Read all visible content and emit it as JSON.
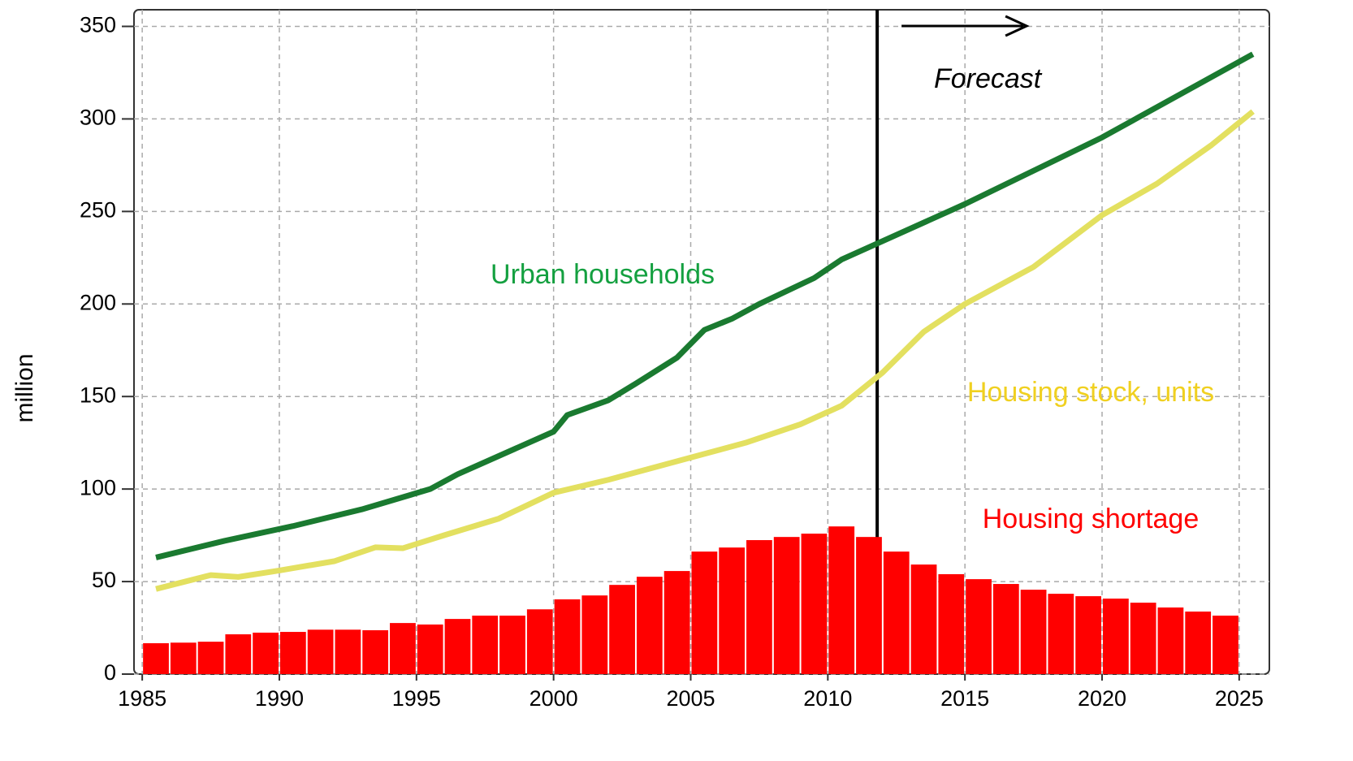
{
  "chart_data": {
    "type": "bar",
    "y_label": "million",
    "annotation": "Forecast",
    "forecast_x": 2011.8,
    "xlim": [
      1984.7,
      2026.1
    ],
    "ylim": [
      0,
      359
    ],
    "xticks": [
      1985,
      1990,
      1995,
      2000,
      2005,
      2010,
      2015,
      2020,
      2025
    ],
    "yticks": [
      0,
      50,
      100,
      150,
      200,
      250,
      300,
      350
    ],
    "grid": true,
    "bins": [
      1985,
      1986,
      1987,
      1988,
      1989,
      1990,
      1991,
      1992,
      1993,
      1994,
      1995,
      1996,
      1997,
      1998,
      1999,
      2000,
      2001,
      2002,
      2003,
      2004,
      2005,
      2006,
      2007,
      2008,
      2009,
      2010,
      2011,
      2012,
      2013,
      2014,
      2015,
      2016,
      2017,
      2018,
      2019,
      2020,
      2021,
      2022,
      2023,
      2024,
      2025
    ],
    "bar_series": {
      "name": "Housing shortage",
      "color": "#ff0000",
      "values": [
        16.7,
        17,
        17.5,
        21.5,
        22.4,
        22.8,
        24,
        24,
        23.7,
        27.6,
        26.8,
        29.8,
        31.6,
        31.6,
        35,
        40.4,
        42.5,
        48.2,
        52.6,
        55.7,
        66.2,
        68.4,
        72.4,
        74.1,
        75.9,
        79.8,
        74.1,
        66.2,
        59.2,
        54,
        51.3,
        48.7,
        45.6,
        43.4,
        42.1,
        40.8,
        38.6,
        36,
        33.8,
        31.6
      ]
    },
    "series": [
      {
        "name": "Urban households",
        "color": "#1a7a30",
        "x": [
          1985.5,
          1988,
          1990.5,
          1993,
          1995.5,
          1996.5,
          2000,
          2000.5,
          2002,
          2003,
          2004.5,
          2005.5,
          2006.5,
          2007.5,
          2009.5,
          2010.5,
          2012,
          2015,
          2020,
          2025.5
        ],
        "values": [
          63,
          72,
          80,
          89,
          100,
          108,
          131,
          140,
          148,
          157,
          171,
          186,
          192,
          200,
          214,
          224,
          234,
          254,
          290,
          335
        ]
      },
      {
        "name": "Housing stock, units",
        "color": "#e3e060",
        "x": [
          1985.5,
          1987.5,
          1988.5,
          1990,
          1992,
          1993.5,
          1994.5,
          1996,
          1998,
          1999,
          2000,
          2002,
          2003,
          2005,
          2007,
          2009,
          2010.5,
          2012,
          2013.5,
          2015,
          2017.5,
          2020,
          2022,
          2024,
          2025.5
        ],
        "values": [
          46,
          53.5,
          52.5,
          56,
          61,
          68.5,
          68,
          75,
          84,
          91,
          98,
          105,
          109,
          117,
          125,
          135,
          145,
          163,
          185,
          200,
          220,
          248,
          265,
          286,
          304
        ]
      }
    ]
  }
}
